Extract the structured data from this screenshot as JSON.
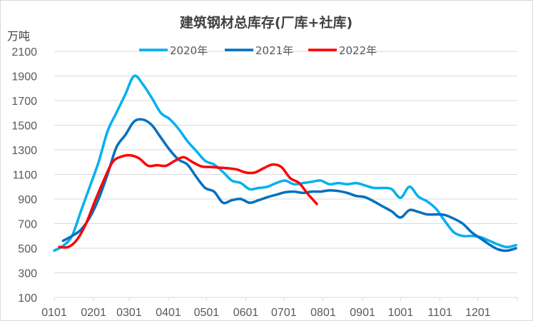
{
  "chart_data": {
    "type": "line",
    "title": "建筑钢材总库存(厂库+社库)",
    "ylabel": "万吨",
    "xlabel": "",
    "ylim": [
      100,
      2100
    ],
    "yticks": [
      100,
      300,
      500,
      700,
      900,
      1100,
      1300,
      1500,
      1700,
      1900,
      2100
    ],
    "xticks": [
      "0101",
      "0201",
      "0301",
      "0401",
      "0501",
      "0601",
      "0701",
      "0801",
      "0901",
      "1001",
      "1101",
      "1201"
    ],
    "grid": "horizontal",
    "legend": "top",
    "series": [
      {
        "name": "2020年",
        "color": "#00B0F0",
        "x": [
          "0101",
          "0108",
          "0115",
          "0122",
          "0129",
          "0205",
          "0212",
          "0219",
          "0226",
          "0305",
          "0312",
          "0319",
          "0326",
          "0402",
          "0409",
          "0416",
          "0423",
          "0430",
          "0507",
          "0514",
          "0521",
          "0528",
          "0604",
          "0611",
          "0618",
          "0625",
          "0702",
          "0709",
          "0716",
          "0723",
          "0730",
          "0806",
          "0813",
          "0820",
          "0827",
          "0903",
          "0910",
          "0917",
          "0924",
          "1001",
          "1008",
          "1015",
          "1022",
          "1029",
          "1105",
          "1112",
          "1119",
          "1126",
          "1203",
          "1210",
          "1217",
          "1224",
          "1231"
        ],
        "values": [
          480,
          520,
          600,
          800,
          1000,
          1200,
          1450,
          1600,
          1750,
          1900,
          1830,
          1720,
          1600,
          1550,
          1470,
          1370,
          1290,
          1210,
          1180,
          1120,
          1050,
          1030,
          980,
          990,
          1000,
          1030,
          1050,
          1020,
          1030,
          1040,
          1050,
          1020,
          1030,
          1020,
          1030,
          1010,
          990,
          990,
          980,
          910,
          1000,
          920,
          880,
          820,
          720,
          630,
          600,
          600,
          590,
          560,
          530,
          510,
          525
        ]
      },
      {
        "name": "2021年",
        "color": "#0070C0",
        "x": [
          "0108",
          "0115",
          "0122",
          "0129",
          "0205",
          "0212",
          "0219",
          "0226",
          "0305",
          "0312",
          "0319",
          "0326",
          "0402",
          "0409",
          "0416",
          "0423",
          "0430",
          "0507",
          "0514",
          "0521",
          "0528",
          "0604",
          "0611",
          "0618",
          "0625",
          "0702",
          "0709",
          "0716",
          "0723",
          "0730",
          "0806",
          "0813",
          "0820",
          "0827",
          "0903",
          "0910",
          "0917",
          "0924",
          "1001",
          "1008",
          "1015",
          "1022",
          "1029",
          "1105",
          "1112",
          "1119",
          "1126",
          "1203",
          "1210",
          "1217",
          "1224",
          "1231"
        ],
        "values": [
          560,
          600,
          650,
          750,
          900,
          1100,
          1320,
          1420,
          1530,
          1545,
          1500,
          1400,
          1300,
          1220,
          1180,
          1080,
          990,
          960,
          870,
          890,
          900,
          870,
          890,
          915,
          935,
          955,
          960,
          950,
          960,
          960,
          970,
          965,
          950,
          925,
          915,
          880,
          840,
          800,
          750,
          810,
          795,
          775,
          775,
          770,
          740,
          700,
          630,
          580,
          530,
          490,
          480,
          500
        ]
      },
      {
        "name": "2022年",
        "color": "#FF0000",
        "x": [
          "0105",
          "0112",
          "0119",
          "0126",
          "0202",
          "0209",
          "0216",
          "0223",
          "0302",
          "0309",
          "0316",
          "0323",
          "0330",
          "0406",
          "0413",
          "0420",
          "0427",
          "0504",
          "0511",
          "0518",
          "0525",
          "0601",
          "0608",
          "0615",
          "0622",
          "0629",
          "0706",
          "0713",
          "0720",
          "0727"
        ],
        "values": [
          510,
          510,
          570,
          700,
          880,
          1050,
          1200,
          1245,
          1255,
          1230,
          1170,
          1175,
          1170,
          1210,
          1240,
          1200,
          1165,
          1160,
          1155,
          1150,
          1140,
          1115,
          1115,
          1150,
          1180,
          1160,
          1070,
          1030,
          940,
          860
        ]
      }
    ]
  }
}
